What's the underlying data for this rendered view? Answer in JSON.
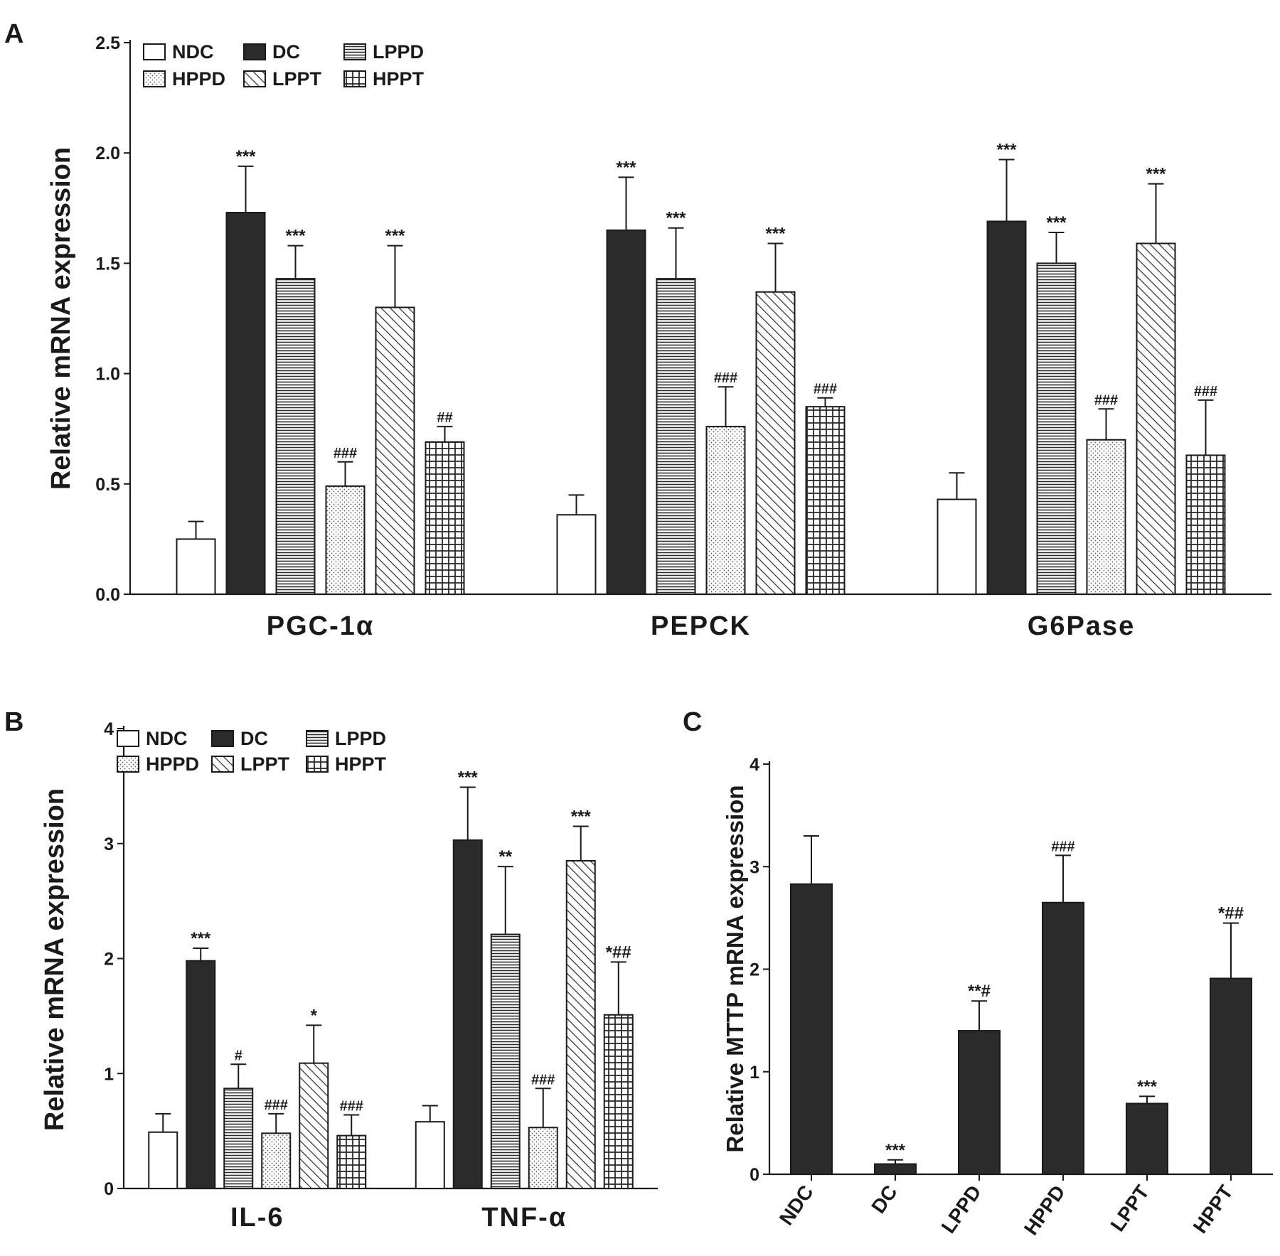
{
  "figure_labels": {
    "a": "A",
    "b": "B",
    "c": "C"
  },
  "colors": {
    "bar_dark": "#2b2b2b",
    "bar_light": "#ffffff",
    "axis": "#1a1a1a"
  },
  "series_legend": [
    {
      "name": "NDC",
      "pattern": "empty"
    },
    {
      "name": "DC",
      "pattern": "solid"
    },
    {
      "name": "LPPD",
      "pattern": "hlines"
    },
    {
      "name": "HPPD",
      "pattern": "dots"
    },
    {
      "name": "LPPT",
      "pattern": "diag"
    },
    {
      "name": "HPPT",
      "pattern": "grid"
    }
  ],
  "chart_data": [
    {
      "panel": "A",
      "type": "bar",
      "ylabel": "Relative mRNA expression",
      "ylim": [
        0,
        2.5
      ],
      "yticks": [
        "0.0",
        "0.5",
        "1.0",
        "1.5",
        "2.0",
        "2.5"
      ],
      "categories": [
        "PGC-1α",
        "PEPCK",
        "G6Pase"
      ],
      "series": [
        {
          "name": "NDC",
          "values": [
            0.25,
            0.36,
            0.43
          ],
          "errors": [
            0.08,
            0.09,
            0.12
          ],
          "sig": [
            "",
            "",
            ""
          ]
        },
        {
          "name": "DC",
          "values": [
            1.73,
            1.65,
            1.69
          ],
          "errors": [
            0.21,
            0.24,
            0.28
          ],
          "sig": [
            "***",
            "***",
            "***"
          ]
        },
        {
          "name": "LPPD",
          "values": [
            1.43,
            1.43,
            1.5
          ],
          "errors": [
            0.15,
            0.23,
            0.14
          ],
          "sig": [
            "***",
            "***",
            "***"
          ]
        },
        {
          "name": "HPPD",
          "values": [
            0.49,
            0.76,
            0.7
          ],
          "errors": [
            0.11,
            0.18,
            0.14
          ],
          "sig": [
            "###",
            "###",
            "###"
          ]
        },
        {
          "name": "LPPT",
          "values": [
            1.3,
            1.37,
            1.59
          ],
          "errors": [
            0.28,
            0.22,
            0.27
          ],
          "sig": [
            "***",
            "***",
            "***"
          ]
        },
        {
          "name": "HPPT",
          "values": [
            0.69,
            0.85,
            0.63
          ],
          "errors": [
            0.07,
            0.04,
            0.25
          ],
          "sig": [
            "##",
            "###",
            "###"
          ]
        }
      ]
    },
    {
      "panel": "B",
      "type": "bar",
      "ylabel": "Relative mRNA expression",
      "ylim": [
        0,
        4
      ],
      "yticks": [
        "0",
        "1",
        "2",
        "3",
        "4"
      ],
      "categories": [
        "IL-6",
        "TNF-α"
      ],
      "series": [
        {
          "name": "NDC",
          "values": [
            0.49,
            0.58
          ],
          "errors": [
            0.16,
            0.14
          ],
          "sig": [
            "",
            ""
          ]
        },
        {
          "name": "DC",
          "values": [
            1.98,
            3.03
          ],
          "errors": [
            0.11,
            0.46
          ],
          "sig": [
            "***",
            "***"
          ]
        },
        {
          "name": "LPPD",
          "values": [
            0.87,
            2.21
          ],
          "errors": [
            0.21,
            0.59
          ],
          "sig": [
            "#",
            "**"
          ]
        },
        {
          "name": "HPPD",
          "values": [
            0.48,
            0.53
          ],
          "errors": [
            0.17,
            0.34
          ],
          "sig": [
            "###",
            "###"
          ]
        },
        {
          "name": "LPPT",
          "values": [
            1.09,
            2.85
          ],
          "errors": [
            0.33,
            0.3
          ],
          "sig": [
            "*",
            "***"
          ]
        },
        {
          "name": "HPPT",
          "values": [
            0.46,
            1.51
          ],
          "errors": [
            0.18,
            0.46
          ],
          "sig": [
            "###",
            "*##"
          ]
        }
      ]
    },
    {
      "panel": "C",
      "type": "bar",
      "ylabel": "Relative MTTP mRNA expression",
      "ylim": [
        0,
        4
      ],
      "yticks": [
        "0",
        "1",
        "2",
        "3",
        "4"
      ],
      "categories": [
        "NDC",
        "DC",
        "LPPD",
        "HPPD",
        "LPPT",
        "HPPT"
      ],
      "values": [
        2.83,
        0.1,
        1.4,
        2.65,
        0.69,
        1.91
      ],
      "errors": [
        0.47,
        0.04,
        0.29,
        0.46,
        0.07,
        0.54
      ],
      "sig": [
        "",
        "***",
        "**#",
        "###",
        "***",
        "*##"
      ]
    }
  ]
}
